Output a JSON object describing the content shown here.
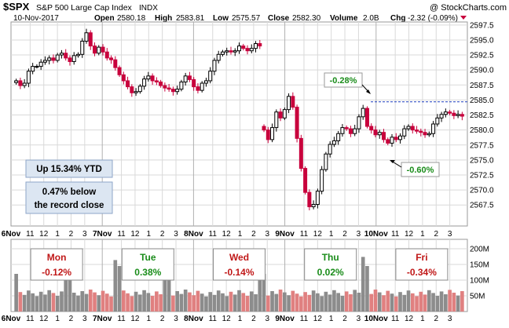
{
  "header": {
    "symbol": "$SPX",
    "name": "S&P 500 Large Cap Index",
    "exchange": "INDX",
    "source": "@ StockCharts.com",
    "date": "10-Nov-2017",
    "open_label": "Open",
    "open": "2580.18",
    "high_label": "High",
    "high": "2583.81",
    "low_label": "Low",
    "low": "2575.57",
    "close_label": "Close",
    "close": "2582.30",
    "volume_label": "Volume",
    "volume": "2.0B",
    "chg_label": "Chg",
    "chg": "-2.32 (-0.09%)"
  },
  "colors": {
    "up": "#000000",
    "down": "#c8003c",
    "vol_gray": "#8c8c8c",
    "vol_red": "#e08080",
    "grid": "#d9d9d9",
    "annotation_green": "#1a8c1a",
    "annotation_red": "#c01818",
    "box_fill": "#dce6f2",
    "dashed_line": "#1f3fbf"
  },
  "annotations": {
    "ytd": "Up 15.34% YTD",
    "record_line1": "0.47% below",
    "record_line2": "the record close",
    "callout_high": "-0.28%",
    "callout_low": "-0.60%"
  },
  "chart_data": [
    {
      "type": "candlestick",
      "title": "$SPX S&P 500 Large Cap Index INDX",
      "interval": "intraday, 6-Nov-2017 to 10-Nov-2017",
      "ylim": [
        2564,
        2598
      ],
      "y_ticks": [
        2567.5,
        2570.0,
        2572.5,
        2575.0,
        2577.5,
        2580.0,
        2582.5,
        2585.0,
        2587.5,
        2590.0,
        2592.5,
        2595.0,
        2597.5
      ],
      "x_tick_labels": [
        "6Nov",
        "11",
        "12",
        "1",
        "2",
        "3",
        "7Nov",
        "11",
        "12",
        "1",
        "2",
        "3",
        "8Nov",
        "11",
        "12",
        "1",
        "2",
        "3",
        "9Nov",
        "11",
        "12",
        "1",
        "2",
        "3",
        "10Nov",
        "11",
        "12",
        "1",
        "2",
        "3"
      ],
      "record_close": 2594.4,
      "reference_level": 2584.7,
      "close_series": [
        2588.2,
        2587.4,
        2587.8,
        2589.8,
        2590.6,
        2590.6,
        2591.3,
        2591.6,
        2592.0,
        2591.6,
        2592.5,
        2592.8,
        2592.0,
        2591.4,
        2592.4,
        2592.6,
        2594.8,
        2596.2,
        2594.0,
        2592.8,
        2593.8,
        2593.0,
        2592.0,
        2591.7,
        2590.4,
        2589.2,
        2588.2,
        2587.2,
        2586.2,
        2586.4,
        2587.3,
        2588.5,
        2589.0,
        2588.2,
        2588.0,
        2587.4,
        2587.0,
        2586.8,
        2586.4,
        2586.8,
        2588.0,
        2589.0,
        2588.4,
        2587.2,
        2586.6,
        2587.8,
        2588.2,
        2589.8,
        2591.6,
        2592.6,
        2593.0,
        2593.2,
        2593.0,
        2593.2,
        2594.0,
        2593.6,
        2593.2,
        2593.6,
        2594.4,
        2594.0,
        2580.0,
        2578.4,
        2580.4,
        2583.0,
        2582.0,
        2583.4,
        2585.6,
        2583.8,
        2578.6,
        2573.6,
        2569.6,
        2567.2,
        2567.6,
        2569.8,
        2573.4,
        2576.0,
        2577.6,
        2578.2,
        2579.4,
        2580.4,
        2580.2,
        2579.4,
        2580.2,
        2582.2,
        2583.6,
        2580.6,
        2580.0,
        2579.2,
        2579.6,
        2578.4,
        2577.8,
        2578.8,
        2578.4,
        2579.0,
        2580.2,
        2580.6,
        2580.0,
        2579.8,
        2579.6,
        2579.2,
        2579.4,
        2581.0,
        2582.0,
        2582.6,
        2583.0,
        2582.8,
        2582.4,
        2582.6,
        2582.3
      ],
      "session_start_indices": [
        0,
        13,
        25,
        37,
        60,
        85
      ]
    },
    {
      "type": "bar",
      "title": "Volume",
      "ylim": [
        0,
        230
      ],
      "y_ticks": [
        50,
        100,
        150,
        200
      ],
      "y_tick_labels": [
        "50M",
        "100M",
        "150M",
        "200M"
      ],
      "x_tick_labels": [
        "6Nov",
        "11",
        "12",
        "1",
        "2",
        "3",
        "7Nov",
        "11",
        "12",
        "1",
        "2",
        "3",
        "8Nov",
        "11",
        "12",
        "1",
        "2",
        "3",
        "9Nov",
        "11",
        "12",
        "1",
        "2",
        "3",
        "10Nov",
        "11",
        "12",
        "1",
        "2",
        "3"
      ],
      "daily_changes": [
        {
          "day": "Mon",
          "change": "-0.12%"
        },
        {
          "day": "Tue",
          "change": "0.38%"
        },
        {
          "day": "Wed",
          "change": "-0.14%"
        },
        {
          "day": "Thu",
          "change": "0.02%"
        },
        {
          "day": "Fri",
          "change": "-0.34%"
        }
      ]
    }
  ]
}
